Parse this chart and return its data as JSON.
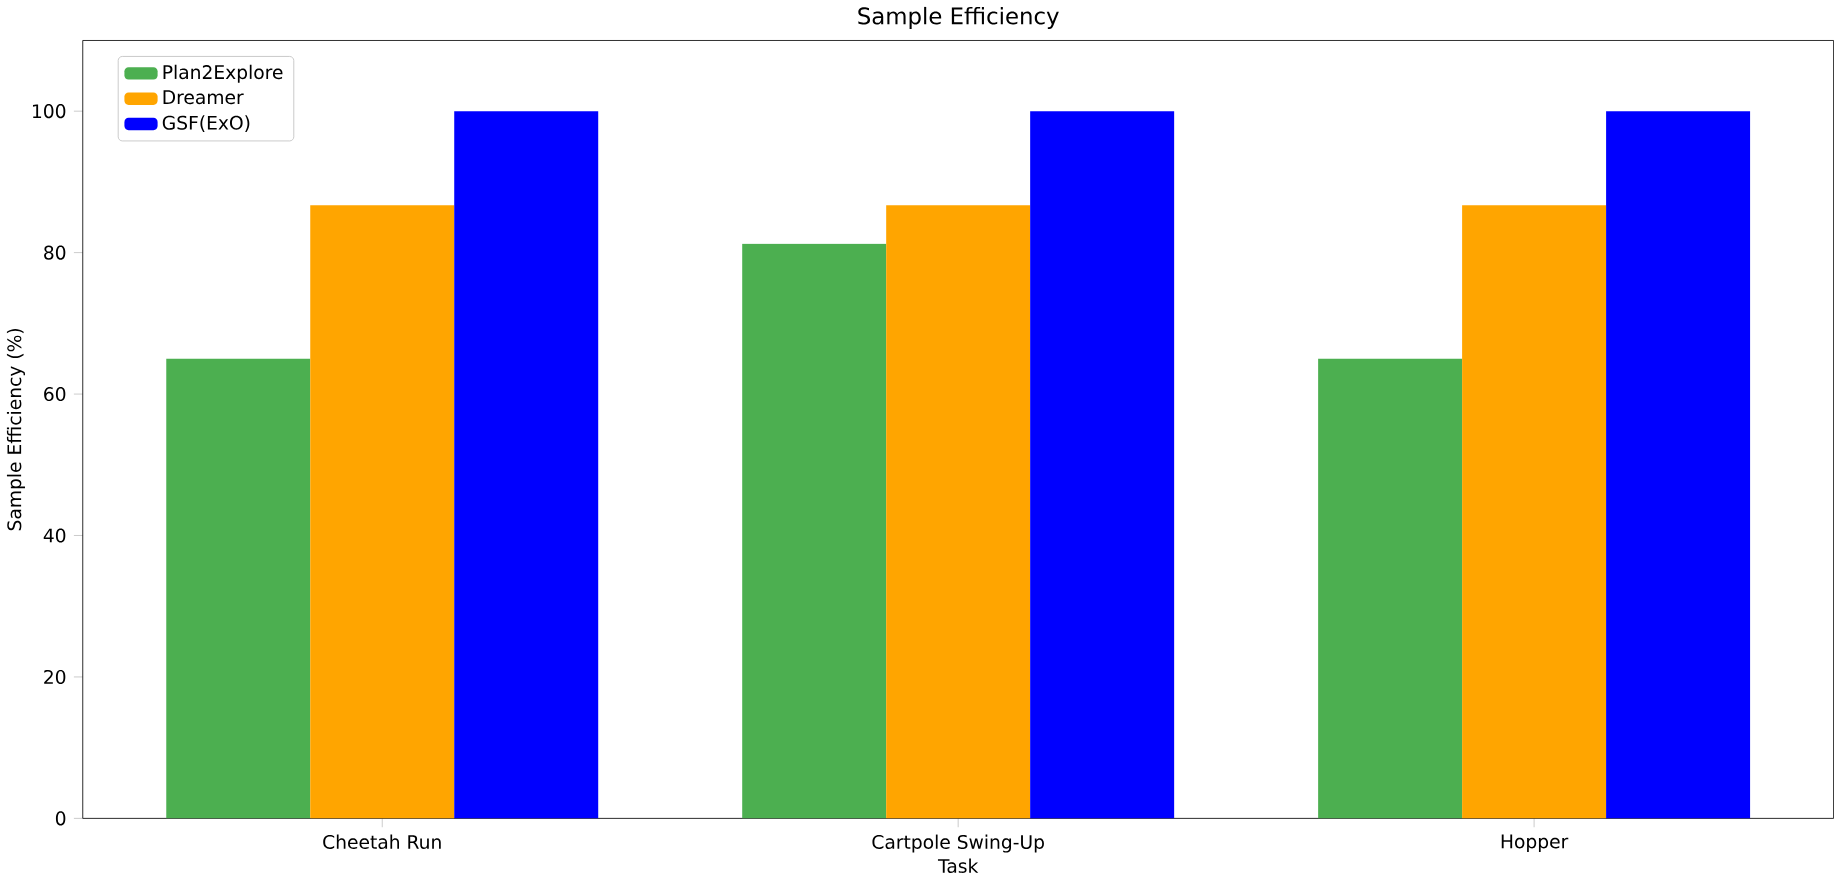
{
  "chart_data": {
    "type": "bar",
    "title": "Sample Efficiency",
    "xlabel": "Task",
    "ylabel": "Sample Efficiency (%)",
    "categories": [
      "Cheetah Run",
      "Cartpole Swing-Up",
      "Hopper"
    ],
    "series": [
      {
        "name": "Plan2Explore",
        "color": "#4caf50",
        "values": [
          65,
          81.25,
          65
        ]
      },
      {
        "name": "Dreamer",
        "color": "#ffa500",
        "values": [
          86.7,
          86.7,
          86.7
        ]
      },
      {
        "name": "GSF(ExO)",
        "color": "#0000ff",
        "values": [
          100,
          100,
          100
        ]
      }
    ],
    "ylim": [
      0,
      110
    ],
    "yticks": [
      0,
      20,
      40,
      60,
      80,
      100
    ],
    "legend": "top left"
  }
}
